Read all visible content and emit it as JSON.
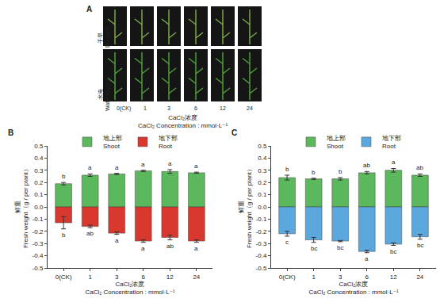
{
  "panel_a": {
    "label": "A",
    "rows": [
      [
        "干旱",
        "Drought"
      ],
      [
        "水淹",
        "Water logging"
      ]
    ],
    "columns": [
      "0(CK)",
      "1",
      "3",
      "6",
      "12",
      "24"
    ],
    "x_title": [
      "CaCl₂浓度",
      "CaCl₂ Concentration : mmol·L⁻¹"
    ]
  },
  "chart_data": [
    {
      "panel": "B",
      "type": "bar",
      "stacked": true,
      "categories": [
        "0(CK)",
        "1",
        "3",
        "6",
        "12",
        "24"
      ],
      "series": [
        {
          "name": "地上部 Shoot",
          "color": "#5cb85c",
          "values": [
            0.19,
            0.26,
            0.27,
            0.295,
            0.29,
            0.28
          ],
          "errors": [
            0.01,
            0.01,
            0.005,
            0.005,
            0.015,
            0.005
          ],
          "letters": [
            "b",
            "a",
            "a",
            "a",
            "a",
            "a"
          ]
        },
        {
          "name": "地下部 Root",
          "color": "#d9382f",
          "values": [
            -0.13,
            -0.16,
            -0.215,
            -0.28,
            -0.25,
            -0.28
          ],
          "errors": [
            0.05,
            0.01,
            0.01,
            0.01,
            0.02,
            0.01
          ],
          "letters": [
            "b",
            "ab",
            "a",
            "a",
            "ab",
            "a"
          ]
        }
      ],
      "x_title": [
        "CaCl₂浓度",
        "CaCl₂ Concentration : mmol·L⁻¹"
      ],
      "y_title": [
        "鲜重",
        "Fresh weight（g / per plant）"
      ],
      "ylim": [
        -0.5,
        0.5
      ],
      "yticks": [
        -0.5,
        -0.4,
        -0.3,
        -0.2,
        -0.1,
        {
          "value": 0,
          "label": "0.0"
        },
        0.1,
        0.2,
        0.3,
        0.4,
        0.5
      ],
      "grid": false,
      "legend": "top"
    },
    {
      "panel": "C",
      "type": "bar",
      "stacked": true,
      "categories": [
        "0(CK)",
        "1",
        "3",
        "6",
        "12",
        "24"
      ],
      "series": [
        {
          "name": "地上部 Shoot",
          "color": "#5cb85c",
          "values": [
            0.24,
            0.23,
            0.23,
            0.28,
            0.3,
            0.26
          ],
          "errors": [
            0.02,
            0.005,
            0.01,
            0.01,
            0.015,
            0.01
          ],
          "letters": [
            "b",
            "b",
            "b",
            "ab",
            "a",
            "ab"
          ]
        },
        {
          "name": "地下部 Root",
          "color": "#5aa8dd",
          "values": [
            -0.22,
            -0.27,
            -0.28,
            -0.365,
            -0.305,
            -0.245
          ],
          "errors": [
            0.02,
            0.02,
            0.005,
            0.01,
            0.01,
            0.02
          ],
          "letters": [
            "c",
            "bc",
            "bc",
            "a",
            "bc",
            "bc"
          ]
        }
      ],
      "x_title": [
        "CaCl₂浓度",
        "CaCl₂ Concentration : mmol·L⁻¹"
      ],
      "y_title": [
        "鲜重",
        "Fresh weight（g / per plant）"
      ],
      "ylim": [
        -0.5,
        0.5
      ],
      "yticks": [
        -0.5,
        -0.4,
        -0.3,
        -0.2,
        -0.1,
        {
          "value": 0,
          "label": "0.0"
        },
        0.1,
        0.2,
        0.3,
        0.4,
        0.5
      ],
      "grid": false,
      "legend": "top"
    }
  ]
}
